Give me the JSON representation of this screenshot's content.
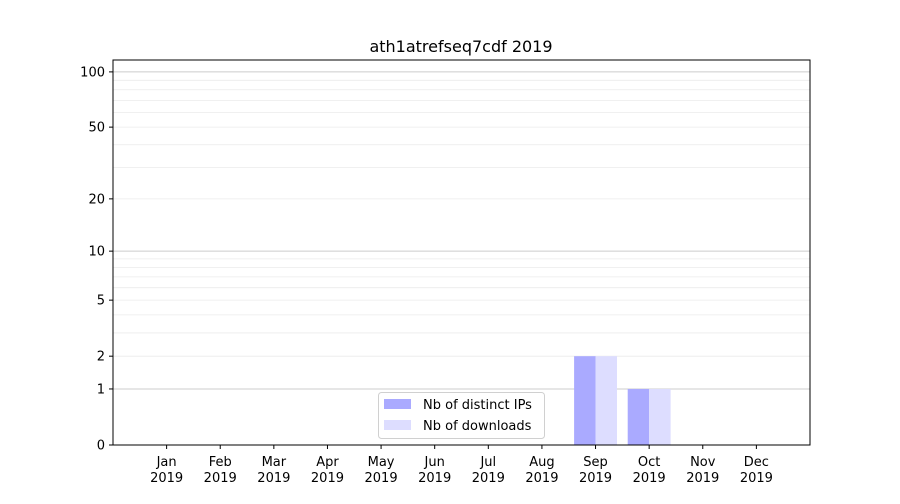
{
  "chart_data": {
    "type": "bar",
    "title": "ath1atrefseq7cdf 2019",
    "xlabel": "",
    "ylabel": "",
    "yscale": "symlog (log of 1+y)",
    "ylim": [
      0,
      116
    ],
    "xlim": [
      -1,
      12
    ],
    "grid": "horizontal major and minor",
    "legend_placement": "lower-center",
    "categories": [
      "Jan\n2019",
      "Feb\n2019",
      "Mar\n2019",
      "Apr\n2019",
      "May\n2019",
      "Jun\n2019",
      "Jul\n2019",
      "Aug\n2019",
      "Sep\n2019",
      "Oct\n2019",
      "Nov\n2019",
      "Dec\n2019"
    ],
    "category_lines": [
      [
        "Jan",
        "2019"
      ],
      [
        "Feb",
        "2019"
      ],
      [
        "Mar",
        "2019"
      ],
      [
        "Apr",
        "2019"
      ],
      [
        "May",
        "2019"
      ],
      [
        "Jun",
        "2019"
      ],
      [
        "Jul",
        "2019"
      ],
      [
        "Aug",
        "2019"
      ],
      [
        "Sep",
        "2019"
      ],
      [
        "Oct",
        "2019"
      ],
      [
        "Nov",
        "2019"
      ],
      [
        "Dec",
        "2019"
      ]
    ],
    "yticks": [
      0,
      1,
      2,
      5,
      10,
      20,
      50,
      100
    ],
    "ytick_labels": [
      "0",
      "1",
      "2",
      "5",
      "10",
      "20",
      "50",
      "100"
    ],
    "series": [
      {
        "name": "Nb of distinct IPs",
        "color": "#aaaaff",
        "values": [
          0,
          0,
          0,
          0,
          0,
          0,
          0,
          0,
          2,
          1,
          0,
          0
        ]
      },
      {
        "name": "Nb of downloads",
        "color": "#ddddff",
        "values": [
          0,
          0,
          0,
          0,
          0,
          0,
          0,
          0,
          2,
          1,
          0,
          0
        ]
      }
    ]
  }
}
